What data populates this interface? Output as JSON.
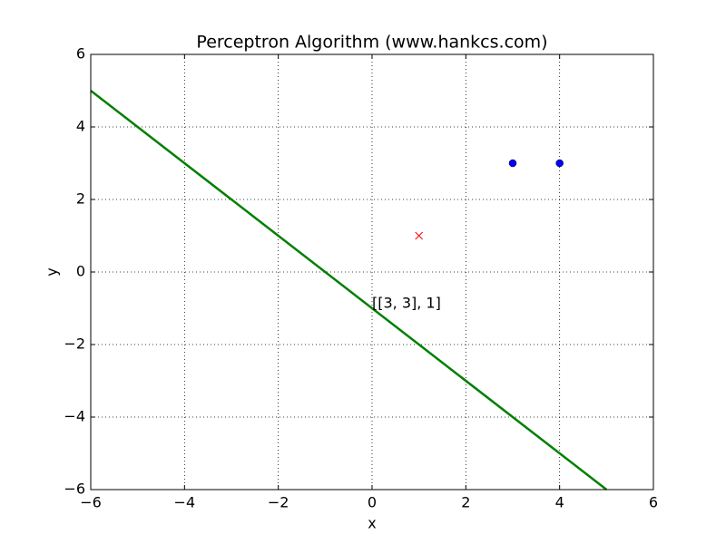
{
  "chart_data": {
    "type": "scatter",
    "title": "Perceptron Algorithm (www.hankcs.com)",
    "x_label": "x",
    "y_label": "y",
    "xlim": [
      -6,
      6
    ],
    "ylim": [
      -6,
      6
    ],
    "xticks": [
      {
        "value": -6,
        "label": "−6"
      },
      {
        "value": -4,
        "label": "−4"
      },
      {
        "value": -2,
        "label": "−2"
      },
      0,
      2,
      4,
      6
    ],
    "yticks": [
      {
        "value": -6,
        "label": "−6"
      },
      {
        "value": -4,
        "label": "−4"
      },
      {
        "value": -2,
        "label": "−2"
      },
      0,
      2,
      4,
      6
    ],
    "grid": true,
    "series": [
      {
        "type": "line",
        "color": "#008000",
        "x": [
          -6,
          5
        ],
        "values": [
          5,
          -6
        ]
      },
      {
        "type": "scatter",
        "marker": "o",
        "color": "#0000ff",
        "x": [
          3,
          4
        ],
        "values": [
          3,
          3
        ]
      },
      {
        "type": "scatter",
        "marker": "x",
        "color": "#ff0000",
        "x": [
          1
        ],
        "values": [
          1
        ]
      }
    ],
    "annotations": [
      "[[3, 3], 1]"
    ]
  }
}
